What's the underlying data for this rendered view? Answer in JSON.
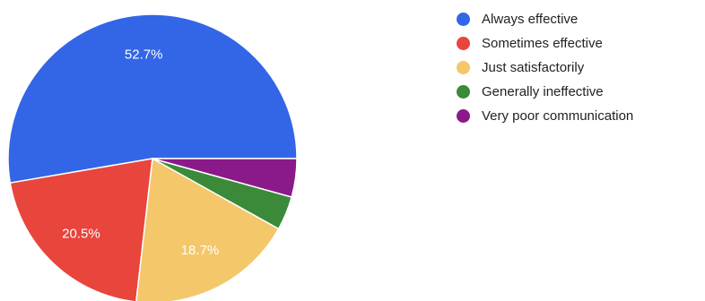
{
  "chart_data": {
    "type": "pie",
    "start_angle_deg": 0,
    "direction": "counterclockwise",
    "legend_position": "right",
    "slices": [
      {
        "label": "Always effective",
        "value": 52.7,
        "color": "#3366e6",
        "display": "52.7%"
      },
      {
        "label": "Sometimes effective",
        "value": 20.5,
        "color": "#e8453c",
        "display": "20.5%"
      },
      {
        "label": "Just satisfactorily",
        "value": 18.7,
        "color": "#f4c76b",
        "display": "18.7%"
      },
      {
        "label": "Generally ineffective",
        "value": 3.8,
        "color": "#3a8a3a",
        "display": ""
      },
      {
        "label": "Very poor communication",
        "value": 4.3,
        "color": "#8a1a8a",
        "display": ""
      }
    ]
  }
}
